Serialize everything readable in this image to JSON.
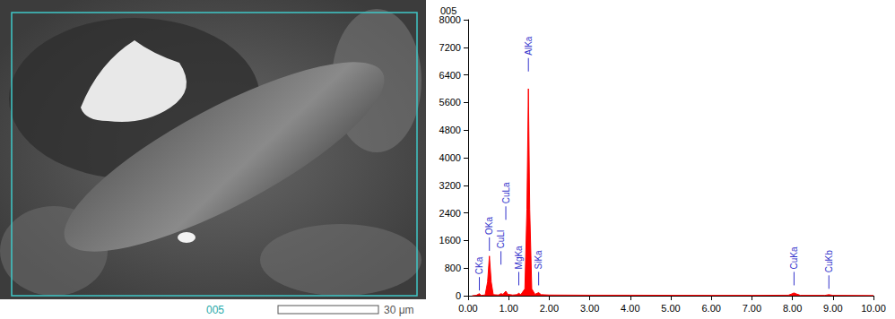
{
  "image": {
    "label": "005",
    "scale_bar": "30 μm"
  },
  "chart_data": {
    "type": "line",
    "title": "005",
    "color": "#ff0000",
    "x": [
      0.1,
      0.2,
      0.277,
      0.32,
      0.42,
      0.48,
      0.525,
      0.57,
      0.62,
      0.75,
      0.81,
      0.86,
      0.93,
      0.98,
      1.1,
      1.2,
      1.25,
      1.3,
      1.4,
      1.45,
      1.487,
      1.52,
      1.57,
      1.65,
      1.74,
      1.8,
      2.0,
      3.0,
      4.0,
      5.0,
      6.0,
      7.0,
      7.9,
      7.98,
      8.04,
      8.1,
      8.2,
      8.8,
      8.9,
      9.0,
      10.0
    ],
    "values": [
      0,
      10,
      60,
      10,
      20,
      400,
      1150,
      400,
      30,
      20,
      60,
      40,
      130,
      40,
      20,
      30,
      70,
      30,
      200,
      2500,
      6000,
      2500,
      200,
      40,
      90,
      30,
      20,
      15,
      15,
      12,
      10,
      10,
      15,
      50,
      80,
      50,
      10,
      10,
      30,
      10,
      5
    ],
    "xlim": [
      0,
      10
    ],
    "xticks": [
      {
        "value": 0,
        "label": "0.00"
      },
      {
        "value": 1,
        "label": "1.00"
      },
      {
        "value": 2,
        "label": "2.00"
      },
      {
        "value": 3,
        "label": "3.00"
      },
      {
        "value": 4,
        "label": "4.00"
      },
      {
        "value": 5,
        "label": "5.00"
      },
      {
        "value": 6,
        "label": "6.00"
      },
      {
        "value": 7,
        "label": "7.00"
      },
      {
        "value": 8,
        "label": "8.00"
      },
      {
        "value": 9,
        "label": "9.00"
      },
      {
        "value": 10,
        "label": "10.00"
      }
    ],
    "ylim": [
      0,
      8000
    ],
    "yticks": [
      0,
      800,
      1600,
      2400,
      3200,
      4000,
      4800,
      5600,
      6400,
      7200,
      8000
    ],
    "grid": false,
    "annotations": [
      {
        "text": "CKa",
        "x": 0.277,
        "y": 150
      },
      {
        "text": "OKa",
        "x": 0.525,
        "y": 1300
      },
      {
        "text": "CuLl",
        "x": 0.81,
        "y": 900
      },
      {
        "text": "CuLa",
        "x": 0.93,
        "y": 2200
      },
      {
        "text": "MgKa",
        "x": 1.25,
        "y": 300
      },
      {
        "text": "AlKa",
        "x": 1.487,
        "y": 6500
      },
      {
        "text": "SiKa",
        "x": 1.74,
        "y": 300
      },
      {
        "text": "CuKa",
        "x": 8.04,
        "y": 300
      },
      {
        "text": "CuKb",
        "x": 8.9,
        "y": 200
      }
    ]
  }
}
